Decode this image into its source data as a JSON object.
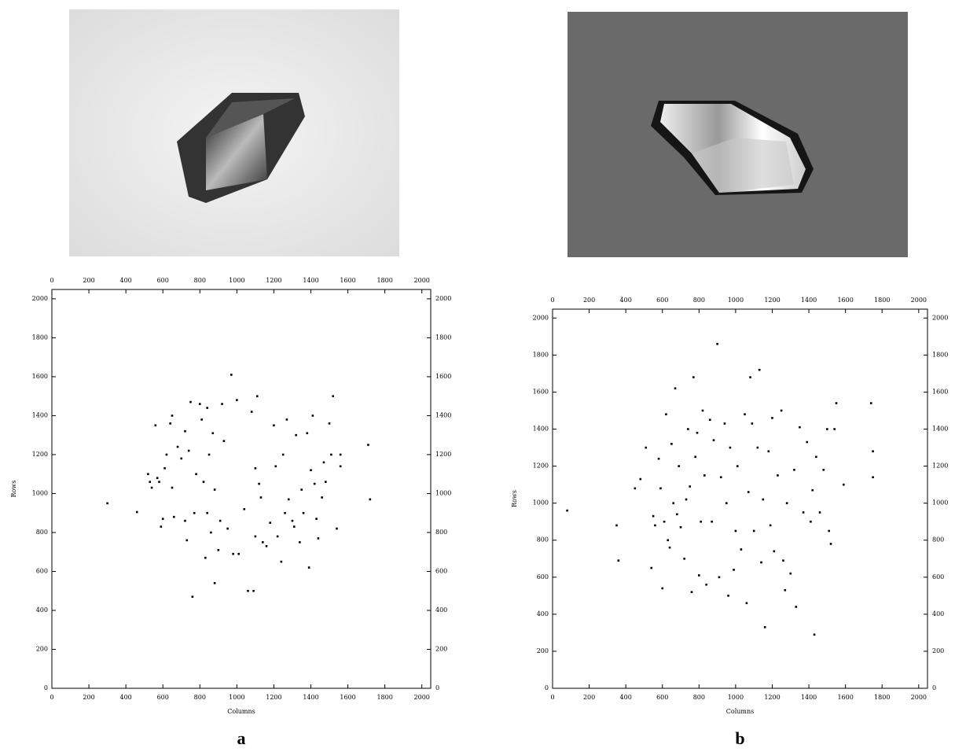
{
  "chart_data": [
    {
      "type": "scatter",
      "panel_label": "a",
      "x_label": "Columns",
      "y_label": "Rows",
      "color": "#000000",
      "xlim": [
        0,
        2048
      ],
      "ylim": [
        0,
        2048
      ],
      "xticks": [
        0,
        200,
        400,
        600,
        800,
        1000,
        1200,
        1400,
        1600,
        1800,
        2000
      ],
      "yticks": [
        0,
        200,
        400,
        600,
        800,
        1000,
        1200,
        1400,
        1600,
        1800,
        2000
      ],
      "x": [
        300,
        460,
        520,
        530,
        540,
        560,
        570,
        580,
        590,
        600,
        610,
        620,
        640,
        650,
        650,
        660,
        680,
        700,
        720,
        720,
        730,
        740,
        750,
        760,
        770,
        780,
        800,
        810,
        820,
        830,
        840,
        840,
        850,
        860,
        870,
        880,
        880,
        900,
        910,
        920,
        930,
        950,
        970,
        980,
        1000,
        1010,
        1040,
        1060,
        1080,
        1090,
        1100,
        1100,
        1110,
        1120,
        1130,
        1140,
        1160,
        1180,
        1200,
        1210,
        1220,
        1240,
        1250,
        1260,
        1270,
        1280,
        1300,
        1310,
        1320,
        1340,
        1350,
        1360,
        1380,
        1390,
        1400,
        1410,
        1420,
        1430,
        1440,
        1460,
        1470,
        1480,
        1500,
        1510,
        1520,
        1540,
        1560,
        1560,
        1710,
        1720
      ],
      "y": [
        950,
        905,
        1100,
        1060,
        1030,
        1350,
        1080,
        1060,
        830,
        870,
        1130,
        1200,
        1360,
        1030,
        1400,
        880,
        1240,
        1180,
        1320,
        860,
        760,
        1220,
        1470,
        470,
        900,
        1100,
        1460,
        1380,
        1060,
        670,
        1440,
        900,
        1200,
        800,
        1310,
        1020,
        540,
        710,
        860,
        1460,
        1270,
        820,
        1610,
        690,
        1480,
        690,
        920,
        500,
        1420,
        500,
        1130,
        780,
        1500,
        1050,
        980,
        750,
        730,
        850,
        1350,
        1140,
        780,
        650,
        1200,
        900,
        1380,
        970,
        860,
        830,
        1300,
        750,
        1020,
        900,
        1310,
        620,
        1120,
        1400,
        1050,
        870,
        770,
        980,
        1160,
        1060,
        1360,
        1200,
        1500,
        820,
        1140,
        1200,
        1250,
        970
      ]
    },
    {
      "type": "scatter",
      "panel_label": "b",
      "x_label": "Columns",
      "y_label": "Rows",
      "color": "#000000",
      "xlim": [
        0,
        2048
      ],
      "ylim": [
        0,
        2048
      ],
      "xticks": [
        0,
        200,
        400,
        600,
        800,
        1000,
        1200,
        1400,
        1600,
        1800,
        2000
      ],
      "yticks": [
        0,
        200,
        400,
        600,
        800,
        1000,
        1200,
        1400,
        1600,
        1800,
        2000
      ],
      "x": [
        80,
        350,
        360,
        450,
        480,
        510,
        540,
        550,
        560,
        580,
        590,
        600,
        610,
        620,
        630,
        640,
        650,
        660,
        670,
        680,
        690,
        700,
        720,
        730,
        740,
        750,
        760,
        770,
        780,
        790,
        800,
        810,
        820,
        830,
        840,
        860,
        870,
        880,
        900,
        910,
        920,
        940,
        950,
        960,
        970,
        990,
        1000,
        1010,
        1030,
        1050,
        1060,
        1070,
        1080,
        1090,
        1100,
        1120,
        1130,
        1140,
        1150,
        1160,
        1180,
        1190,
        1200,
        1210,
        1230,
        1250,
        1260,
        1270,
        1280,
        1300,
        1320,
        1330,
        1350,
        1370,
        1390,
        1410,
        1420,
        1430,
        1440,
        1460,
        1480,
        1500,
        1510,
        1520,
        1540,
        1550,
        1590,
        1740,
        1750,
        1750
      ],
      "y": [
        960,
        880,
        690,
        1080,
        1130,
        1300,
        650,
        930,
        880,
        1240,
        1080,
        540,
        900,
        1480,
        800,
        760,
        1320,
        1000,
        1620,
        940,
        1200,
        870,
        700,
        1020,
        1400,
        1090,
        520,
        1680,
        1250,
        1380,
        610,
        900,
        1500,
        1150,
        560,
        1450,
        900,
        1340,
        1860,
        600,
        1140,
        1430,
        1000,
        500,
        1300,
        640,
        850,
        1200,
        750,
        1480,
        460,
        1060,
        1680,
        1430,
        850,
        1300,
        1720,
        680,
        1020,
        330,
        1280,
        880,
        1460,
        740,
        1150,
        1500,
        690,
        530,
        1000,
        620,
        1180,
        440,
        1410,
        950,
        1330,
        900,
        1070,
        290,
        1250,
        950,
        1180,
        1400,
        850,
        780,
        1400,
        1540,
        1100,
        1540,
        1280,
        1140
      ]
    }
  ]
}
